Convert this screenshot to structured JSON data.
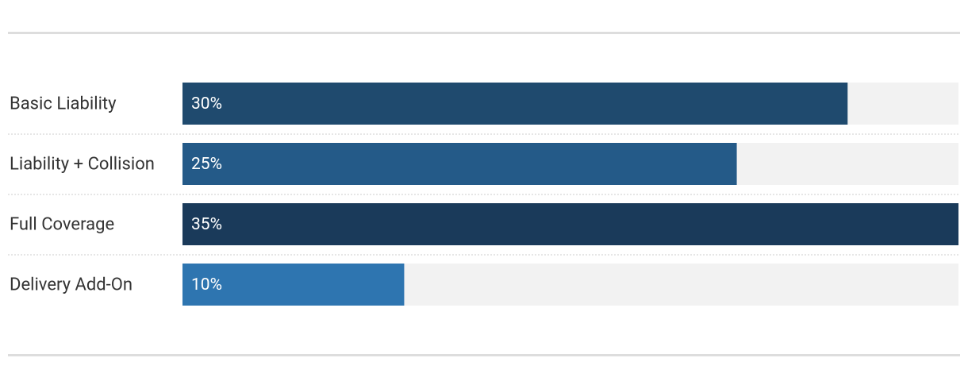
{
  "chart_data": {
    "type": "bar",
    "orientation": "horizontal",
    "categories": [
      "Basic Liability",
      "Liability + Collision",
      "Full Coverage",
      "Delivery Add-On"
    ],
    "values": [
      30,
      25,
      35,
      10
    ],
    "value_labels": [
      "30%",
      "25%",
      "35%",
      "10%"
    ],
    "colors": [
      "#1f4a6e",
      "#245a88",
      "#1a3a5a",
      "#2e75b0"
    ]
  }
}
